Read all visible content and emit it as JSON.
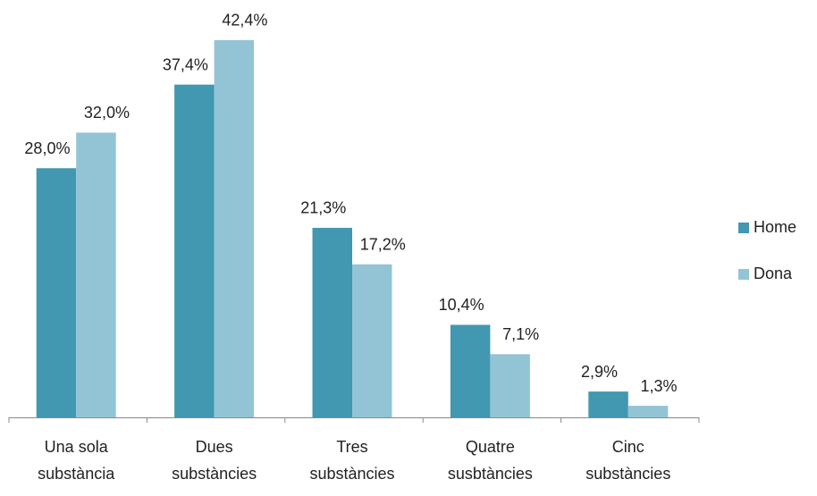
{
  "chart_data": {
    "type": "bar",
    "categories": [
      [
        "Una sola",
        "substància"
      ],
      [
        "Dues",
        "substàncies"
      ],
      [
        "Tres",
        "substàncies"
      ],
      [
        "Quatre",
        "susbtàncies"
      ],
      [
        "Cinc",
        "substàncies"
      ]
    ],
    "series": [
      {
        "name": "Home",
        "color": "#4198b0",
        "values": [
          28.0,
          37.4,
          21.3,
          10.4,
          2.9
        ],
        "value_labels": [
          "28,0%",
          "37,4%",
          "21,3%",
          "10,4%",
          "2,9%"
        ]
      },
      {
        "name": "Dona",
        "color": "#93c4d6",
        "values": [
          32.0,
          42.4,
          17.2,
          7.1,
          1.3
        ],
        "value_labels": [
          "32,0%",
          "42,4%",
          "17,2%",
          "7,1%",
          "1,3%"
        ]
      }
    ],
    "ylim": [
      0,
      45
    ],
    "legend": "right"
  }
}
